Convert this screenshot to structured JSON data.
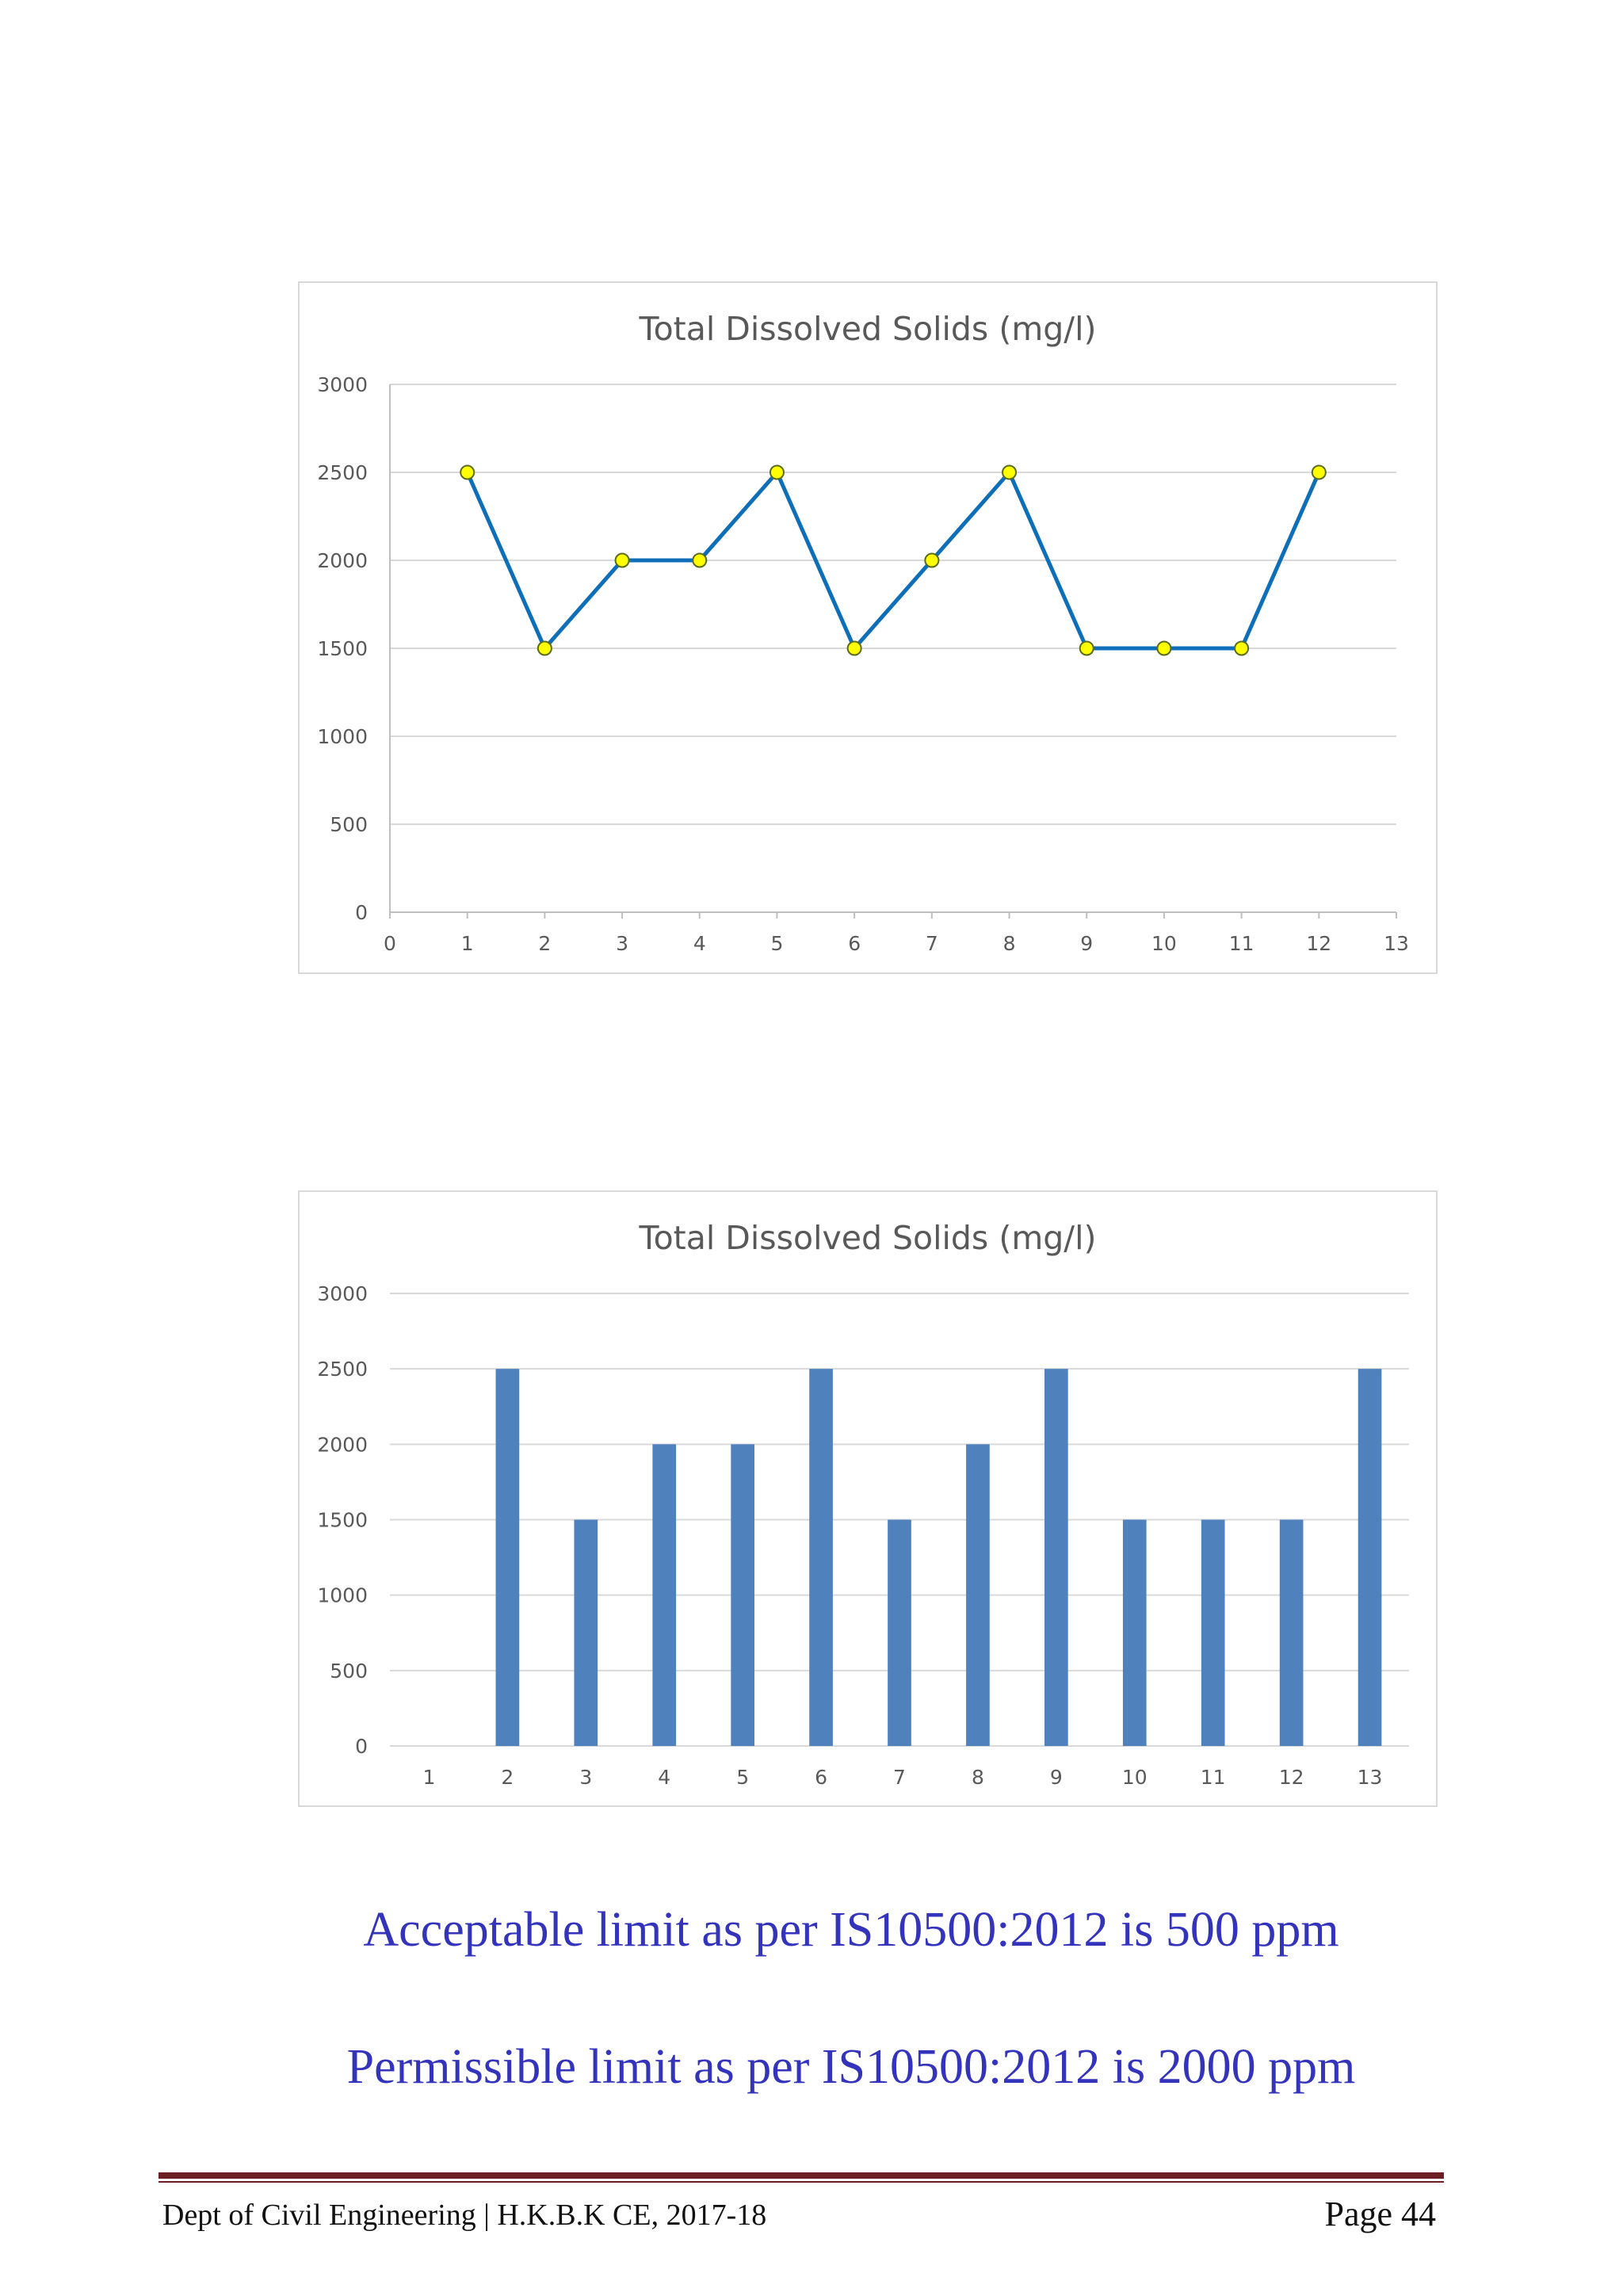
{
  "chart_data": [
    {
      "type": "line",
      "title": "Total Dissolved Solids (mg/l)",
      "x": [
        1,
        2,
        3,
        4,
        5,
        6,
        7,
        8,
        9,
        10,
        11,
        12
      ],
      "values": [
        2500,
        1500,
        2000,
        2000,
        2500,
        1500,
        2000,
        2500,
        1500,
        1500,
        1500,
        2500
      ],
      "xlim": [
        0,
        13
      ],
      "ylim": [
        0,
        3000
      ],
      "xticks": [
        "0",
        "1",
        "2",
        "3",
        "4",
        "5",
        "6",
        "7",
        "8",
        "9",
        "10",
        "11",
        "12",
        "13"
      ],
      "yticks": [
        "0",
        "500",
        "1000",
        "1500",
        "2000",
        "2500",
        "3000"
      ],
      "line_color": "#0e6fb8",
      "marker_color": "#ffff00",
      "grid": true
    },
    {
      "type": "bar",
      "title": "Total Dissolved Solids (mg/l)",
      "categories": [
        "1",
        "2",
        "3",
        "4",
        "5",
        "6",
        "7",
        "8",
        "9",
        "10",
        "11",
        "12",
        "13"
      ],
      "values": [
        null,
        2500,
        1500,
        2000,
        2000,
        2500,
        1500,
        2000,
        2500,
        1500,
        1500,
        1500,
        2500
      ],
      "ylim": [
        0,
        3000
      ],
      "yticks": [
        "0",
        "500",
        "1000",
        "1500",
        "2000",
        "2500",
        "3000"
      ],
      "bar_color": "#4f81bd",
      "grid": true
    }
  ],
  "limits": {
    "acceptable": "Acceptable limit as per IS10500:2012 is 500 ppm",
    "permissible": "Permissible limit as per IS10500:2012 is 2000 ppm"
  },
  "footer": {
    "left": "Dept of Civil Engineering | H.K.B.K CE, 2017-18",
    "page": "Page 44"
  }
}
